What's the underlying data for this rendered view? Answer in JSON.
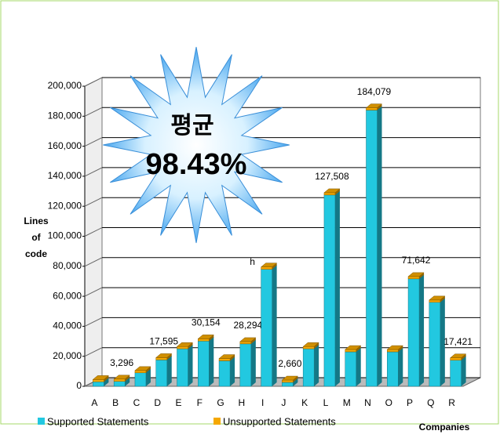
{
  "chart_data": {
    "type": "bar3d-stacked",
    "categories": [
      "A",
      "B",
      "C",
      "D",
      "E",
      "F",
      "G",
      "H",
      "I",
      "J",
      "K",
      "L",
      "M",
      "N",
      "O",
      "P",
      "Q",
      "R"
    ],
    "series": [
      {
        "name": "Supported Statements",
        "color": "#22c8e0",
        "values": [
          3000,
          3296,
          9000,
          17595,
          25000,
          30154,
          17000,
          28294,
          78000,
          2660,
          25000,
          127508,
          23000,
          184079,
          23000,
          71642,
          56000,
          17421
        ],
        "value_labels": [
          null,
          "3,296",
          null,
          "17,595",
          null,
          "30,154",
          null,
          "28,294",
          null,
          "2,660",
          null,
          "127,508",
          null,
          "184,079",
          null,
          "71,642",
          null,
          "17,421"
        ]
      },
      {
        "name": "Unsupported Statements",
        "color": "#f5a800",
        "values": [
          1500,
          1500,
          1500,
          1500,
          1500,
          1500,
          1500,
          1500,
          1500,
          1500,
          1500,
          1500,
          1500,
          1500,
          1500,
          1500,
          1500,
          1500
        ]
      }
    ],
    "ylim": [
      0,
      200000
    ],
    "yticks": [
      0,
      {
        "value": 20000,
        "label": "20,000"
      },
      {
        "value": 40000,
        "label": "40,000"
      },
      {
        "value": 60000,
        "label": "60,000"
      },
      {
        "value": 80000,
        "label": "80,000"
      },
      {
        "value": 100000,
        "label": "100,000"
      },
      {
        "value": 120000,
        "label": "120,000"
      },
      {
        "value": 140000,
        "label": "140,000"
      },
      {
        "value": 160000,
        "label": "160,000"
      },
      {
        "value": 180000,
        "label": "180,000"
      },
      {
        "value": 200000,
        "label": "200,000"
      }
    ],
    "grid": true,
    "y_label": [
      "Lines",
      "of",
      "code"
    ],
    "x_label": "Companies",
    "annotations": [
      {
        "text": "h",
        "x": "I"
      }
    ],
    "callout": [
      "평균",
      "98.43%"
    ],
    "legend": "bottom"
  }
}
